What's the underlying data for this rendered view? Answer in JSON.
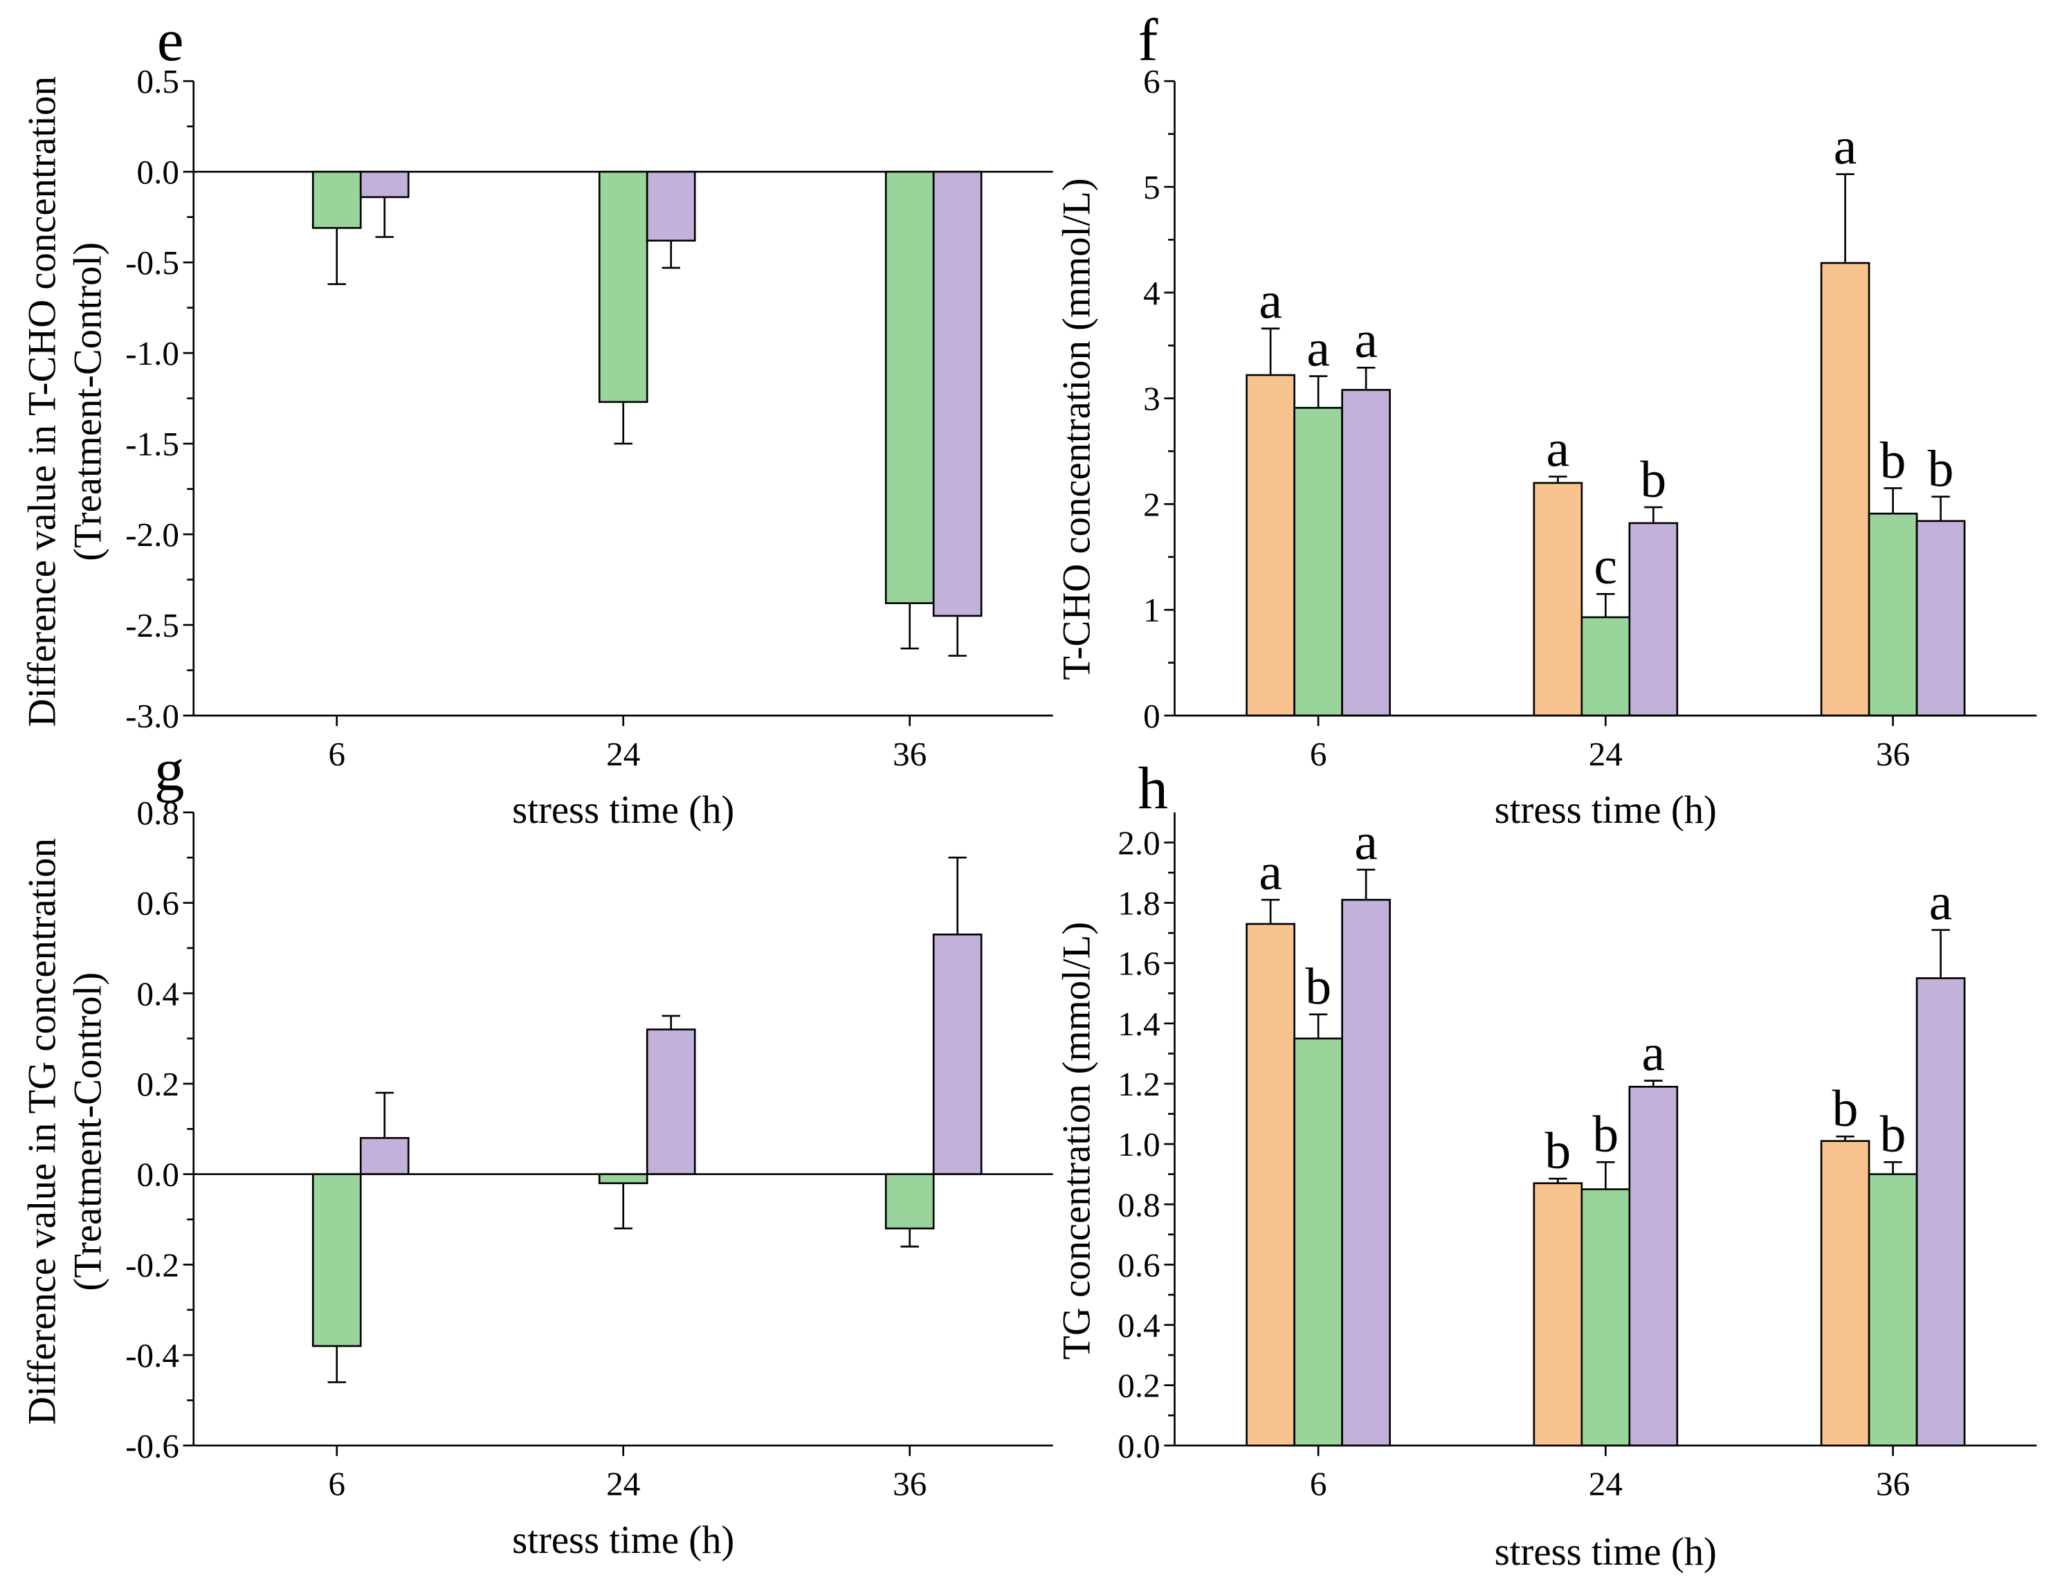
{
  "chart_data": [
    {
      "panel_label": "e",
      "type": "bar",
      "categories": [
        "6",
        "24",
        "36"
      ],
      "xlabel": "stress time (h)",
      "ylabel": [
        "Difference value in T-CHO concentration",
        "(Treatment-Control)"
      ],
      "ylim": [
        -3.0,
        0.5
      ],
      "yticks": [
        -3.0,
        -2.5,
        -2.0,
        -1.5,
        -1.0,
        -0.5,
        0.0,
        0.5
      ],
      "ytick_labels": [
        "-3.0",
        "-2.5",
        "-2.0",
        "-1.5",
        "-1.0",
        "-0.5",
        "0.0",
        "0.5"
      ],
      "series": [
        {
          "color": "#99d59a",
          "values": [
            -0.31,
            -1.27,
            -2.38
          ],
          "errors": [
            0.31,
            0.23,
            0.25
          ]
        },
        {
          "color": "#c2b1d9",
          "values": [
            -0.14,
            -0.38,
            -2.45
          ],
          "errors": [
            0.22,
            0.15,
            0.22
          ]
        }
      ]
    },
    {
      "panel_label": "f",
      "type": "bar",
      "categories": [
        "6",
        "24",
        "36"
      ],
      "xlabel": "stress time (h)",
      "ylabel": [
        "T-CHO concentration (mmol/L)"
      ],
      "ylim": [
        0,
        6
      ],
      "yticks": [
        0,
        1,
        2,
        3,
        4,
        5,
        6
      ],
      "ytick_labels": [
        "0",
        "1",
        "2",
        "3",
        "4",
        "5",
        "6"
      ],
      "series": [
        {
          "color": "#f9c38f",
          "values": [
            3.22,
            2.2,
            4.28
          ],
          "errors": [
            0.44,
            0.06,
            0.84
          ],
          "letters": [
            "a",
            "a",
            "a"
          ]
        },
        {
          "color": "#99d59a",
          "values": [
            2.91,
            0.93,
            1.91
          ],
          "errors": [
            0.3,
            0.22,
            0.24
          ],
          "letters": [
            "a",
            "c",
            "b"
          ]
        },
        {
          "color": "#c2b1d9",
          "values": [
            3.08,
            1.82,
            1.84
          ],
          "errors": [
            0.21,
            0.15,
            0.23
          ],
          "letters": [
            "a",
            "b",
            "b"
          ]
        }
      ]
    },
    {
      "panel_label": "g",
      "type": "bar",
      "categories": [
        "6",
        "24",
        "36"
      ],
      "xlabel": "stress time (h)",
      "ylabel": [
        "Difference value in TG concentration",
        "(Treatment-Control)"
      ],
      "ylim": [
        -0.6,
        0.8
      ],
      "yticks": [
        -0.6,
        -0.4,
        -0.2,
        0.0,
        0.2,
        0.4,
        0.6,
        0.8
      ],
      "ytick_labels": [
        "-0.6",
        "-0.4",
        "-0.2",
        "0.0",
        "0.2",
        "0.4",
        "0.6",
        "0.8"
      ],
      "series": [
        {
          "color": "#99d59a",
          "values": [
            -0.38,
            -0.02,
            -0.12
          ],
          "errors": [
            0.08,
            0.1,
            0.04
          ]
        },
        {
          "color": "#c2b1d9",
          "values": [
            0.08,
            0.32,
            0.53
          ],
          "errors": [
            0.1,
            0.03,
            0.17
          ]
        }
      ]
    },
    {
      "panel_label": "h",
      "type": "bar",
      "categories": [
        "6",
        "24",
        "36"
      ],
      "xlabel": "stress time (h)",
      "ylabel": [
        "TG concentration (mmol/L)"
      ],
      "ylim": [
        0,
        2.1
      ],
      "yticks": [
        0.0,
        0.2,
        0.4,
        0.6,
        0.8,
        1.0,
        1.2,
        1.4,
        1.6,
        1.8,
        2.0
      ],
      "ytick_labels": [
        "0.0",
        "0.2",
        "0.4",
        "0.6",
        "0.8",
        "1.0",
        "1.2",
        "1.4",
        "1.6",
        "1.8",
        "2.0"
      ],
      "series": [
        {
          "color": "#f9c38f",
          "values": [
            1.73,
            0.87,
            1.01
          ],
          "errors": [
            0.08,
            0.015,
            0.015
          ],
          "letters": [
            "a",
            "b",
            "b"
          ]
        },
        {
          "color": "#99d59a",
          "values": [
            1.35,
            0.85,
            0.9
          ],
          "errors": [
            0.08,
            0.09,
            0.04
          ],
          "letters": [
            "b",
            "b",
            "b"
          ]
        },
        {
          "color": "#c2b1d9",
          "values": [
            1.81,
            1.19,
            1.55
          ],
          "errors": [
            0.1,
            0.02,
            0.16
          ],
          "letters": [
            "a",
            "a",
            "a"
          ]
        }
      ]
    }
  ]
}
